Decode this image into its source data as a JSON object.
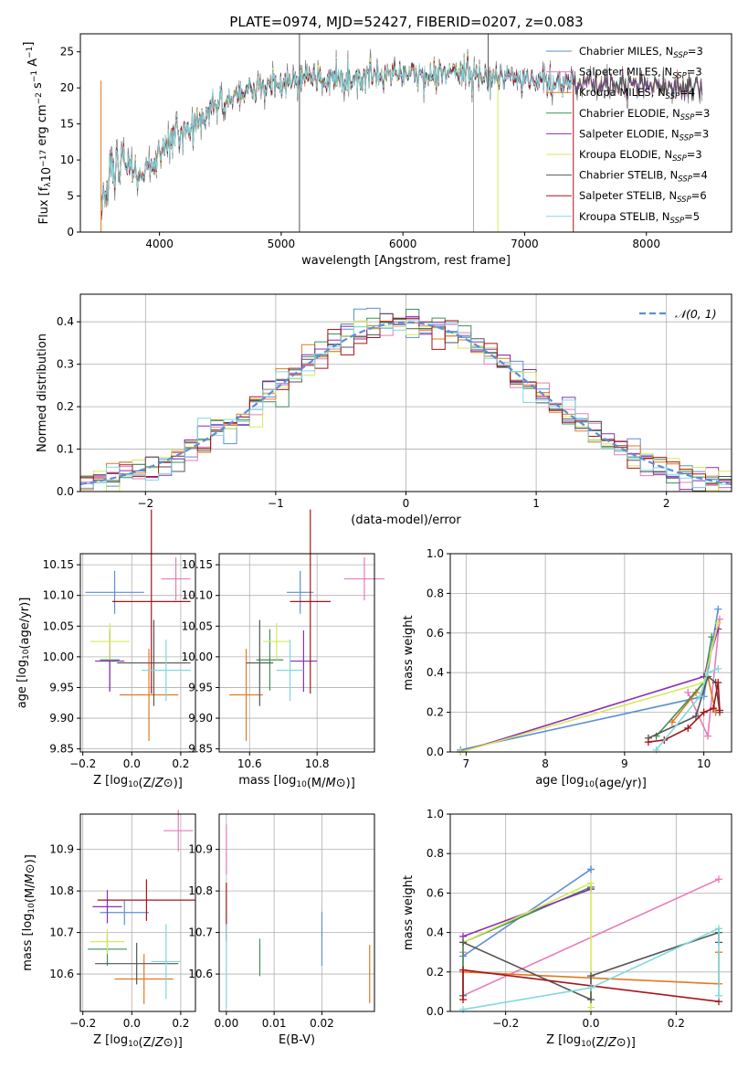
{
  "figure": {
    "title": "PLATE=0974, MJD=52427, FIBERID=0207, z=0.083"
  },
  "colors": {
    "chabrier_miles": "#5b8fd6",
    "salpeter_miles": "#e97bba",
    "kroupa_miles": "#e07a1f",
    "chabrier_elodie": "#3f8f5a",
    "salpeter_elodie": "#8b2fb5",
    "kroupa_elodie": "#d8e85a",
    "chabrier_stelib": "#555555",
    "salpeter_stelib": "#a8141b",
    "kroupa_stelib": "#7fd9dd",
    "spectrum": "#777777",
    "gaussian": "#5b8fd6",
    "grid": "#b0b0b0"
  },
  "chart_data": [
    {
      "id": "spectrum",
      "type": "line",
      "xlabel": "wavelength [Angstrom, rest frame]",
      "ylabel": "Flux [f_λ10^-17 erg cm^-2 s^-1 A^-1]",
      "xlim": [
        3350,
        8700
      ],
      "ylim": [
        0,
        27.5
      ],
      "xticks": [
        4000,
        5000,
        6000,
        7000,
        8000
      ],
      "yticks": [
        0,
        5,
        10,
        15,
        20,
        25
      ],
      "grid": false,
      "legend_position": "right",
      "legend": [
        {
          "key": "chabrier_miles",
          "text": "Chabrier MILES, N",
          "sub": "SSP",
          "tail": "=3"
        },
        {
          "key": "salpeter_miles",
          "text": "Salpeter MILES, N",
          "sub": "SSP",
          "tail": "=3"
        },
        {
          "key": "kroupa_miles",
          "text": "Kroupa MILES, N",
          "sub": "SSP",
          "tail": "=4"
        },
        {
          "key": "chabrier_elodie",
          "text": "Chabrier ELODIE, N",
          "sub": "SSP",
          "tail": "=3"
        },
        {
          "key": "salpeter_elodie",
          "text": "Salpeter ELODIE, N",
          "sub": "SSP",
          "tail": "=3"
        },
        {
          "key": "kroupa_elodie",
          "text": "Kroupa ELODIE, N",
          "sub": "SSP",
          "tail": "=3"
        },
        {
          "key": "chabrier_stelib",
          "text": "Chabrier STELIB, N",
          "sub": "SSP",
          "tail": "=4"
        },
        {
          "key": "salpeter_stelib",
          "text": "Salpeter STELIB, N",
          "sub": "SSP",
          "tail": "=6"
        },
        {
          "key": "kroupa_stelib",
          "text": "Kroupa STELIB, N",
          "sub": "SSP",
          "tail": "=5"
        }
      ],
      "trend": {
        "x": [
          3520,
          3600,
          3700,
          3800,
          3900,
          4000,
          4100,
          4200,
          4300,
          4400,
          4500,
          4700,
          5000,
          5200,
          5500,
          5800,
          6000,
          6200,
          6400,
          6600,
          6800,
          7000,
          7200,
          7400,
          7600,
          7800,
          8000,
          8200,
          8400
        ],
        "y": [
          4.5,
          8.5,
          9.0,
          8.0,
          9.0,
          10.5,
          13.0,
          14.0,
          14.5,
          16.5,
          18.0,
          19.5,
          20.5,
          21.0,
          21.5,
          22.0,
          22.0,
          21.8,
          21.8,
          21.5,
          21.2,
          21.0,
          20.8,
          20.8,
          20.6,
          20.6,
          20.5,
          20.4,
          20.5
        ]
      }
    },
    {
      "id": "residuals",
      "type": "histogram",
      "xlabel": "(data-model)/error",
      "ylabel": "Normed distribution",
      "xlim": [
        -2.5,
        2.5
      ],
      "ylim": [
        0,
        0.465
      ],
      "xticks": [
        -2,
        -1,
        0,
        1,
        2
      ],
      "yticks": [
        0,
        0.1,
        0.2,
        0.3,
        0.4
      ],
      "grid": true,
      "bin_width": 0.1,
      "legend": {
        "text": "𝒩(0, 1)",
        "position": "top-right"
      }
    },
    {
      "id": "age_vs_Z",
      "type": "errorbar",
      "xlabel": "Z [log10(Z/Z⊙)]",
      "ylabel": "age [log10(age/yr)]",
      "xlim": [
        -0.21,
        0.26
      ],
      "ylim": [
        9.845,
        10.168
      ],
      "xticks": [
        -0.2,
        0.0,
        0.2
      ],
      "yticks": [
        9.85,
        9.9,
        9.95,
        10.0,
        10.05,
        10.1,
        10.15
      ],
      "grid": true,
      "points": [
        {
          "key": "chabrier_miles",
          "x": -0.07,
          "xerr": 0.12,
          "y": 10.105,
          "yerr": 0.035
        },
        {
          "key": "salpeter_miles",
          "x": 0.18,
          "xerr": 0.06,
          "y": 10.127,
          "yerr": 0.035
        },
        {
          "key": "kroupa_miles",
          "x": 0.07,
          "xerr": 0.12,
          "y": 9.938,
          "yerr": 0.075
        },
        {
          "key": "chabrier_elodie",
          "x": -0.09,
          "xerr": 0.04,
          "y": 9.995,
          "yerr": 0.05
        },
        {
          "key": "salpeter_elodie",
          "x": -0.09,
          "xerr": 0.06,
          "y": 9.993,
          "yerr": 0.05
        },
        {
          "key": "kroupa_elodie",
          "x": -0.09,
          "xerr": 0.08,
          "y": 10.025,
          "yerr": 0.03
        },
        {
          "key": "chabrier_stelib",
          "x": 0.09,
          "xerr": 0.15,
          "y": 9.99,
          "yerr": 0.07
        },
        {
          "key": "salpeter_stelib",
          "x": 0.08,
          "xerr": 0.16,
          "y": 10.09,
          "yerr": 0.15
        },
        {
          "key": "kroupa_stelib",
          "x": 0.14,
          "xerr": 0.1,
          "y": 9.978,
          "yerr": 0.05
        }
      ]
    },
    {
      "id": "age_vs_mass",
      "type": "errorbar",
      "xlabel": "mass [log10(M/M⊙)]",
      "ylabel": "",
      "xlim": [
        10.51,
        10.97
      ],
      "ylim": [
        9.845,
        10.168
      ],
      "xticks": [
        10.6,
        10.8
      ],
      "yticks": [
        9.85,
        9.9,
        9.95,
        10.0,
        10.05,
        10.1,
        10.15
      ],
      "grid": true,
      "points": [
        {
          "key": "chabrier_miles",
          "x": 10.75,
          "xerr": 0.04,
          "y": 10.105,
          "yerr": 0.035
        },
        {
          "key": "salpeter_miles",
          "x": 10.94,
          "xerr": 0.06,
          "y": 10.127,
          "yerr": 0.035
        },
        {
          "key": "kroupa_miles",
          "x": 10.59,
          "xerr": 0.05,
          "y": 9.938,
          "yerr": 0.075
        },
        {
          "key": "chabrier_elodie",
          "x": 10.66,
          "xerr": 0.04,
          "y": 9.995,
          "yerr": 0.05
        },
        {
          "key": "salpeter_elodie",
          "x": 10.76,
          "xerr": 0.04,
          "y": 9.993,
          "yerr": 0.05
        },
        {
          "key": "kroupa_elodie",
          "x": 10.68,
          "xerr": 0.04,
          "y": 10.025,
          "yerr": 0.03
        },
        {
          "key": "chabrier_stelib",
          "x": 10.63,
          "xerr": 0.04,
          "y": 9.99,
          "yerr": 0.07
        },
        {
          "key": "salpeter_stelib",
          "x": 10.78,
          "xerr": 0.06,
          "y": 10.09,
          "yerr": 0.15
        },
        {
          "key": "kroupa_stelib",
          "x": 10.72,
          "xerr": 0.04,
          "y": 9.978,
          "yerr": 0.05
        }
      ]
    },
    {
      "id": "weight_vs_age",
      "type": "line",
      "xlabel": "age [log10(age/yr)]",
      "ylabel": "mass weight",
      "xlim": [
        6.8,
        10.35
      ],
      "ylim": [
        0,
        1.0
      ],
      "xticks": [
        7,
        8,
        9,
        10
      ],
      "yticks": [
        0.0,
        0.2,
        0.4,
        0.6,
        0.8,
        1.0
      ],
      "grid": true,
      "series": [
        {
          "key": "chabrier_miles",
          "x": [
            6.93,
            10.0,
            10.18
          ],
          "y": [
            0.01,
            0.28,
            0.72
          ]
        },
        {
          "key": "salpeter_miles",
          "x": [
            9.8,
            10.05,
            10.2
          ],
          "y": [
            0.3,
            0.08,
            0.67
          ]
        },
        {
          "key": "kroupa_miles",
          "x": [
            9.6,
            9.9,
            10.05,
            10.15
          ],
          "y": [
            0.15,
            0.3,
            0.38,
            0.2
          ]
        },
        {
          "key": "chabrier_elodie",
          "x": [
            9.4,
            10.0,
            10.1
          ],
          "y": [
            0.08,
            0.35,
            0.58
          ]
        },
        {
          "key": "salpeter_elodie",
          "x": [
            6.93,
            10.0,
            10.18
          ],
          "y": [
            0.0,
            0.38,
            0.62
          ]
        },
        {
          "key": "kroupa_elodie",
          "x": [
            6.93,
            10.0,
            10.18
          ],
          "y": [
            0.0,
            0.35,
            0.65
          ]
        },
        {
          "key": "chabrier_stelib",
          "x": [
            9.3,
            9.9,
            10.05,
            10.15,
            10.2
          ],
          "y": [
            0.07,
            0.18,
            0.38,
            0.35,
            0.2
          ]
        },
        {
          "key": "salpeter_stelib",
          "x": [
            9.3,
            9.5,
            9.8,
            10.0,
            10.12,
            10.18,
            10.2
          ],
          "y": [
            0.05,
            0.06,
            0.12,
            0.2,
            0.22,
            0.35,
            0.21
          ]
        },
        {
          "key": "kroupa_stelib",
          "x": [
            9.4,
            9.95,
            10.05,
            10.18
          ],
          "y": [
            0.01,
            0.28,
            0.4,
            0.42
          ]
        }
      ]
    },
    {
      "id": "mass_vs_Z",
      "type": "errorbar",
      "xlabel": "Z [log10(Z/Z⊙)]",
      "ylabel": "mass [log10(M/M⊙)]",
      "xlim": [
        -0.21,
        0.26
      ],
      "ylim": [
        10.51,
        10.985
      ],
      "xticks": [
        -0.2,
        0.0,
        0.2
      ],
      "yticks": [
        10.6,
        10.7,
        10.8,
        10.9
      ],
      "grid": true,
      "points": [
        {
          "key": "chabrier_miles",
          "x": -0.03,
          "xerr": 0.1,
          "y": 10.748,
          "yerr": 0.03
        },
        {
          "key": "salpeter_miles",
          "x": 0.19,
          "xerr": 0.06,
          "y": 10.945,
          "yerr": 0.05
        },
        {
          "key": "kroupa_miles",
          "x": 0.05,
          "xerr": 0.12,
          "y": 10.588,
          "yerr": 0.06
        },
        {
          "key": "chabrier_elodie",
          "x": -0.1,
          "xerr": 0.08,
          "y": 10.66,
          "yerr": 0.04
        },
        {
          "key": "salpeter_elodie",
          "x": -0.1,
          "xerr": 0.06,
          "y": 10.762,
          "yerr": 0.04
        },
        {
          "key": "kroupa_elodie",
          "x": -0.1,
          "xerr": 0.07,
          "y": 10.678,
          "yerr": 0.03
        },
        {
          "key": "chabrier_stelib",
          "x": 0.02,
          "xerr": 0.17,
          "y": 10.625,
          "yerr": 0.05
        },
        {
          "key": "salpeter_stelib",
          "x": 0.06,
          "xerr": 0.2,
          "y": 10.778,
          "yerr": 0.05
        },
        {
          "key": "kroupa_stelib",
          "x": 0.14,
          "xerr": 0.06,
          "y": 10.63,
          "yerr": 0.09
        }
      ]
    },
    {
      "id": "mass_vs_ebv",
      "type": "errorbar",
      "xlabel": "E(B-V)",
      "ylabel": "",
      "xlim": [
        -0.0015,
        0.031
      ],
      "ylim": [
        10.51,
        10.985
      ],
      "xticks": [
        0.0,
        0.01,
        0.02
      ],
      "yticks": [
        10.6,
        10.7,
        10.8,
        10.9
      ],
      "grid": true,
      "points": [
        {
          "key": "salpeter_miles",
          "x": 0.0,
          "xerr": 0,
          "y": 10.9,
          "yerr": 0.06
        },
        {
          "key": "salpeter_stelib",
          "x": 0.0,
          "xerr": 0,
          "y": 10.75,
          "yerr": 0.07
        },
        {
          "key": "kroupa_stelib",
          "x": 0.0,
          "xerr": 0,
          "y": 10.62,
          "yerr": 0.1
        },
        {
          "key": "chabrier_elodie",
          "x": 0.007,
          "xerr": 0,
          "y": 10.64,
          "yerr": 0.045
        },
        {
          "key": "chabrier_miles",
          "x": 0.02,
          "xerr": 0,
          "y": 10.685,
          "yerr": 0.065
        },
        {
          "key": "kroupa_miles",
          "x": 0.03,
          "xerr": 0,
          "y": 10.6,
          "yerr": 0.07
        }
      ]
    },
    {
      "id": "weight_vs_Z",
      "type": "line",
      "xlabel": "Z [log10(Z/Z⊙)]",
      "ylabel": "mass weight",
      "xlim": [
        -0.33,
        0.33
      ],
      "ylim": [
        0,
        1.0
      ],
      "xticks": [
        -0.2,
        0.0,
        0.2
      ],
      "yticks": [
        0.0,
        0.2,
        0.4,
        0.6,
        0.8,
        1.0
      ],
      "grid": true,
      "series": [
        {
          "key": "chabrier_miles",
          "x": [
            -0.3,
            0.0,
            0.0
          ],
          "y": [
            0.28,
            0.72,
            0.72
          ]
        },
        {
          "key": "salpeter_miles",
          "x": [
            -0.3,
            -0.3,
            0.3
          ],
          "y": [
            0.3,
            0.08,
            0.67
          ]
        },
        {
          "key": "kroupa_miles",
          "x": [
            -0.3,
            0.0,
            0.3,
            0.3
          ],
          "y": [
            0.2,
            0.17,
            0.14,
            0.3
          ]
        },
        {
          "key": "chabrier_elodie",
          "x": [
            -0.3,
            -0.3,
            0.0
          ],
          "y": [
            0.08,
            0.35,
            0.63
          ]
        },
        {
          "key": "salpeter_elodie",
          "x": [
            -0.3,
            0.0,
            0.0
          ],
          "y": [
            0.38,
            0.62,
            0.62
          ]
        },
        {
          "key": "kroupa_elodie",
          "x": [
            -0.3,
            0.0,
            0.0
          ],
          "y": [
            0.35,
            0.65,
            0.02
          ]
        },
        {
          "key": "chabrier_stelib",
          "x": [
            -0.3,
            0.0,
            0.0,
            0.3,
            0.3
          ],
          "y": [
            0.35,
            0.06,
            0.18,
            0.4,
            0.35
          ]
        },
        {
          "key": "salpeter_stelib",
          "x": [
            -0.3,
            -0.3,
            0.3
          ],
          "y": [
            0.06,
            0.21,
            0.05
          ]
        },
        {
          "key": "kroupa_stelib",
          "x": [
            -0.3,
            0.0,
            0.3,
            0.3
          ],
          "y": [
            0.01,
            0.12,
            0.42,
            0.08
          ]
        }
      ]
    }
  ]
}
